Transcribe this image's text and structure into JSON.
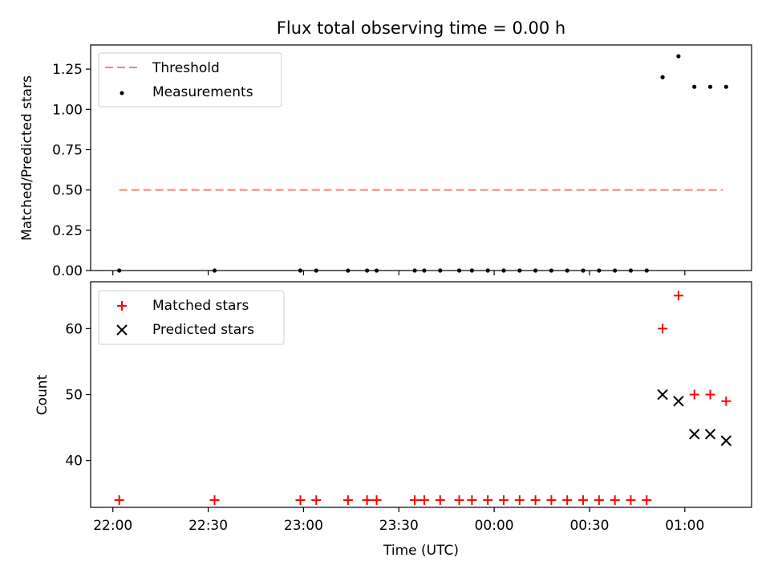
{
  "chart_data": [
    {
      "type": "scatter",
      "title": "Flux total observing time = 0.00 h",
      "ylabel": "Matched/Predicted stars",
      "xlabel": "",
      "xlim": [
        "21:53",
        "01:21"
      ],
      "ylim": [
        0,
        1.4
      ],
      "yticks": [
        0.0,
        0.25,
        0.5,
        0.75,
        1.0,
        1.25
      ],
      "ytick_labels": [
        "0.00",
        "0.25",
        "0.50",
        "0.75",
        "1.00",
        "1.25"
      ],
      "legend_position": "top-left",
      "series": [
        {
          "name": "Threshold",
          "style": "dashed-line",
          "color": "#ff7f7f",
          "x": [
            "22:02",
            "01:12"
          ],
          "y": [
            0.5,
            0.5
          ]
        },
        {
          "name": "Measurements",
          "style": "dot",
          "color": "#000000",
          "x": [
            "22:02",
            "22:32",
            "22:59",
            "23:04",
            "23:14",
            "23:20",
            "23:23",
            "23:35",
            "23:38",
            "23:43",
            "23:49",
            "23:53",
            "23:58",
            "24:03",
            "24:08",
            "24:13",
            "24:18",
            "24:23",
            "24:28",
            "24:33",
            "24:38",
            "24:43",
            "24:48",
            "24:53",
            "24:58",
            "25:03",
            "25:08",
            "25:13"
          ],
          "y": [
            0,
            0,
            0,
            0,
            0,
            0,
            0,
            0,
            0,
            0,
            0,
            0,
            0,
            0,
            0,
            0,
            0,
            0,
            0,
            0,
            0,
            0,
            0,
            1.2,
            1.33,
            1.14,
            1.14,
            1.14
          ]
        }
      ]
    },
    {
      "type": "scatter",
      "title": "",
      "ylabel": "Count",
      "xlabel": "Time (UTC)",
      "xlim": [
        "21:53",
        "01:21"
      ],
      "ylim": [
        32.9,
        67.1
      ],
      "yticks": [
        40,
        50,
        60
      ],
      "ytick_labels": [
        "40",
        "50",
        "60"
      ],
      "xticks": [
        "22:00",
        "22:30",
        "23:00",
        "23:30",
        "00:00",
        "00:30",
        "01:00"
      ],
      "xtick_labels": [
        "22:00",
        "22:30",
        "23:00",
        "23:30",
        "00:00",
        "00:30",
        "01:00"
      ],
      "legend_position": "top-left",
      "series": [
        {
          "name": "Matched stars",
          "style": "plus",
          "color": "#ff0000",
          "x": [
            "22:02",
            "22:32",
            "22:59",
            "23:04",
            "23:14",
            "23:20",
            "23:23",
            "23:35",
            "23:38",
            "23:43",
            "23:49",
            "23:53",
            "23:58",
            "24:03",
            "24:08",
            "24:13",
            "24:18",
            "24:23",
            "24:28",
            "24:33",
            "24:38",
            "24:43",
            "24:48",
            "24:53",
            "24:58",
            "25:03",
            "25:08",
            "25:13"
          ],
          "y": [
            34,
            34,
            34,
            34,
            34,
            34,
            34,
            34,
            34,
            34,
            34,
            34,
            34,
            34,
            34,
            34,
            34,
            34,
            34,
            34,
            34,
            34,
            34,
            60,
            65,
            50,
            50,
            49
          ]
        },
        {
          "name": "Predicted stars",
          "style": "x",
          "color": "#000000",
          "x": [
            "24:53",
            "24:58",
            "25:03",
            "25:08",
            "25:13"
          ],
          "y": [
            50,
            49,
            44,
            44,
            43
          ]
        }
      ]
    }
  ]
}
